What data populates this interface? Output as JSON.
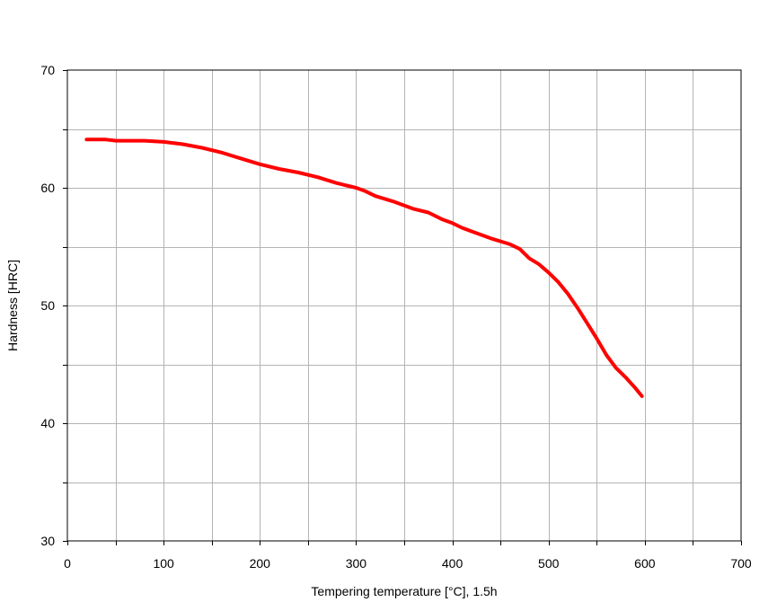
{
  "chart_data": {
    "type": "line",
    "title": "",
    "xlabel": "Tempering temperature [°C], 1.5h",
    "ylabel": "Hardness [HRC]",
    "xlim": [
      0,
      700
    ],
    "ylim": [
      30,
      70
    ],
    "x_ticks": [
      0,
      100,
      200,
      300,
      400,
      500,
      600,
      700
    ],
    "y_ticks": [
      30,
      40,
      50,
      60,
      70
    ],
    "x_minor_step": 50,
    "y_minor_step": 5,
    "grid": true,
    "legend": "none",
    "series": [
      {
        "color": "#ff0000",
        "x": [
          20,
          40,
          50,
          60,
          80,
          100,
          120,
          140,
          160,
          180,
          200,
          220,
          240,
          260,
          280,
          300,
          310,
          320,
          340,
          360,
          375,
          390,
          400,
          410,
          420,
          440,
          460,
          470,
          480,
          490,
          500,
          510,
          520,
          530,
          540,
          550,
          560,
          570,
          580,
          590,
          597
        ],
        "y": [
          64.1,
          64.1,
          64.0,
          64.0,
          64.0,
          63.9,
          63.7,
          63.4,
          63.0,
          62.5,
          62.0,
          61.6,
          61.3,
          60.9,
          60.4,
          60.0,
          59.7,
          59.3,
          58.8,
          58.2,
          57.9,
          57.3,
          57.0,
          56.6,
          56.3,
          55.7,
          55.2,
          54.8,
          54.0,
          53.5,
          52.8,
          52.0,
          51.0,
          49.8,
          48.5,
          47.2,
          45.8,
          44.7,
          43.9,
          43.0,
          42.3
        ]
      }
    ]
  }
}
